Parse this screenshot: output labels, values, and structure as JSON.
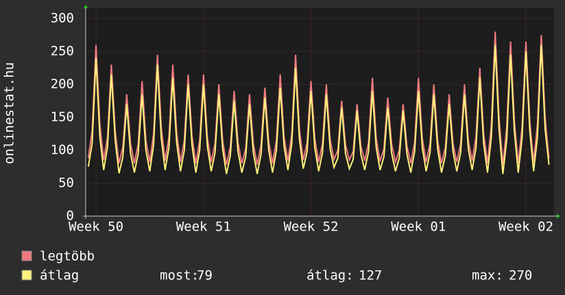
{
  "chart_data": {
    "type": "line",
    "y_label": "onlinestat.hu",
    "xlim": [
      -0.17,
      30.33
    ],
    "xticks": [
      {
        "value": 0.5,
        "label": "Week 50"
      },
      {
        "value": 7.5,
        "label": "Week 51"
      },
      {
        "value": 14.5,
        "label": "Week 52"
      },
      {
        "value": 21.5,
        "label": "Week 01"
      },
      {
        "value": 28.5,
        "label": "Week 02"
      }
    ],
    "ylim": [
      0,
      300
    ],
    "yticks": [
      0,
      50,
      100,
      150,
      200,
      250,
      300
    ],
    "grid": true,
    "x": [
      0,
      0.25,
      0.5,
      0.75,
      1,
      1.25,
      1.5,
      1.75,
      2,
      2.25,
      2.5,
      2.75,
      3,
      3.25,
      3.5,
      3.75,
      4,
      4.25,
      4.5,
      4.75,
      5,
      5.25,
      5.5,
      5.75,
      6,
      6.25,
      6.5,
      6.75,
      7,
      7.25,
      7.5,
      7.75,
      8,
      8.25,
      8.5,
      8.75,
      9,
      9.25,
      9.5,
      9.75,
      10,
      10.25,
      10.5,
      10.75,
      11,
      11.25,
      11.5,
      11.75,
      12,
      12.25,
      12.5,
      12.75,
      13,
      13.25,
      13.5,
      13.75,
      14,
      14.25,
      14.5,
      14.75,
      15,
      15.25,
      15.5,
      15.75,
      16,
      16.25,
      16.5,
      16.75,
      17,
      17.25,
      17.5,
      17.75,
      18,
      18.25,
      18.5,
      18.75,
      19,
      19.25,
      19.5,
      19.75,
      20,
      20.25,
      20.5,
      20.75,
      21,
      21.25,
      21.5,
      21.75,
      22,
      22.25,
      22.5,
      22.75,
      23,
      23.25,
      23.5,
      23.75,
      24,
      24.25,
      24.5,
      24.75,
      25,
      25.25,
      25.5,
      25.75,
      26,
      26.25,
      26.5,
      26.75,
      27,
      27.25,
      27.5,
      27.75,
      28,
      28.25,
      28.5,
      28.75,
      29,
      29.25,
      29.5,
      29.75,
      30
    ],
    "series": [
      {
        "name": "legtöbb",
        "color": "#f07a80",
        "values": [
          88,
          130,
          260,
          140,
          85,
          120,
          230,
          130,
          80,
          105,
          185,
          110,
          80,
          110,
          205,
          115,
          82,
          125,
          245,
          135,
          84,
          120,
          230,
          128,
          82,
          115,
          215,
          122,
          80,
          115,
          215,
          120,
          82,
          110,
          200,
          115,
          78,
          105,
          190,
          112,
          80,
          102,
          185,
          110,
          78,
          108,
          195,
          114,
          80,
          115,
          215,
          120,
          84,
          125,
          245,
          132,
          85,
          112,
          205,
          118,
          82,
          110,
          200,
          116,
          86,
          100,
          175,
          108,
          85,
          98,
          170,
          106,
          84,
          112,
          210,
          118,
          83,
          102,
          180,
          110,
          82,
          100,
          170,
          106,
          80,
          112,
          210,
          118,
          82,
          110,
          200,
          115,
          80,
          104,
          185,
          110,
          82,
          110,
          200,
          115,
          84,
          120,
          225,
          125,
          80,
          140,
          280,
          150,
          78,
          135,
          265,
          145,
          80,
          135,
          265,
          145,
          82,
          140,
          275,
          150,
          88
        ]
      },
      {
        "name": "átlag",
        "color": "#fff27a",
        "values": [
          75,
          110,
          240,
          120,
          70,
          105,
          215,
          115,
          65,
          90,
          170,
          95,
          66,
          95,
          185,
          100,
          68,
          108,
          230,
          118,
          70,
          104,
          210,
          112,
          68,
          100,
          200,
          108,
          66,
          100,
          200,
          106,
          68,
          96,
          185,
          102,
          64,
          92,
          175,
          98,
          66,
          90,
          170,
          96,
          64,
          94,
          180,
          100,
          66,
          100,
          195,
          106,
          70,
          110,
          225,
          116,
          72,
          98,
          190,
          104,
          68,
          96,
          185,
          102,
          74,
          88,
          165,
          95,
          72,
          86,
          160,
          94,
          70,
          98,
          190,
          104,
          70,
          90,
          165,
          96,
          68,
          88,
          160,
          94,
          66,
          98,
          190,
          104,
          68,
          96,
          185,
          102,
          66,
          92,
          170,
          98,
          68,
          96,
          185,
          102,
          70,
          104,
          210,
          110,
          66,
          120,
          260,
          132,
          64,
          116,
          245,
          128,
          66,
          118,
          250,
          130,
          68,
          120,
          260,
          132,
          78
        ]
      }
    ],
    "stats": [
      {
        "label": "most:",
        "value": 79
      },
      {
        "label": "átlag:",
        "value": 127
      },
      {
        "label": "max:",
        "value": 270
      }
    ]
  }
}
